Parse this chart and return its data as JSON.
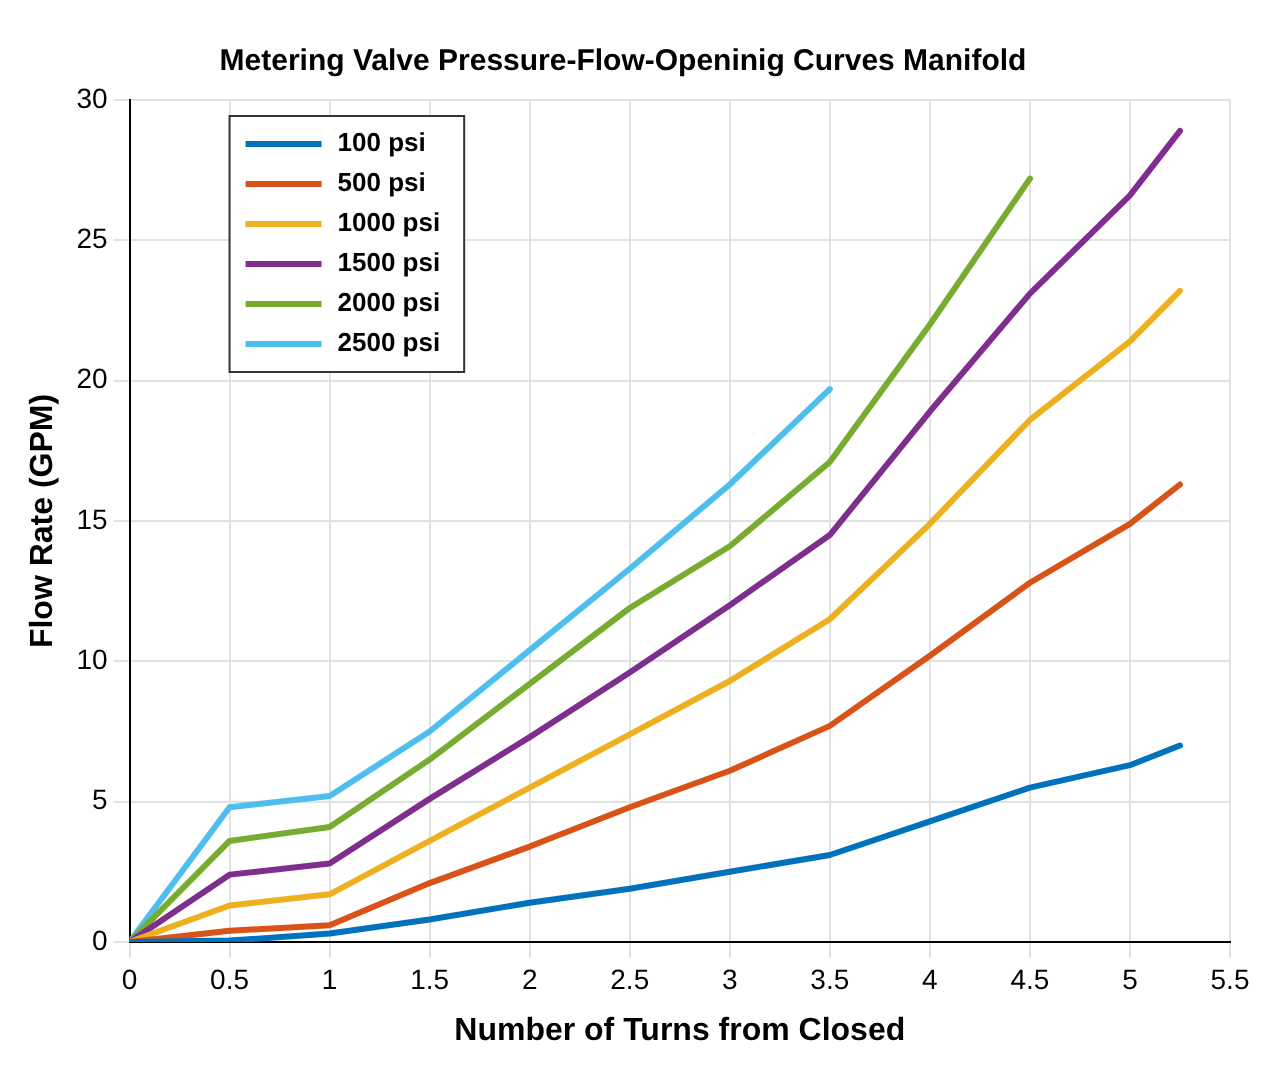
{
  "chart_data": {
    "type": "line",
    "title": "Metering Valve Pressure-Flow-Openinig Curves Manifold",
    "xlabel": "Number of Turns from Closed",
    "ylabel": "Flow Rate (GPM)",
    "x": [
      0,
      0.5,
      1,
      1.5,
      2,
      2.5,
      3,
      3.5,
      4,
      4.5,
      5,
      5.25
    ],
    "series": [
      {
        "name": "100 psi",
        "color": "#0072bd",
        "values": [
          0,
          0.05,
          0.3,
          0.8,
          1.4,
          1.9,
          2.5,
          3.1,
          4.3,
          5.5,
          6.3,
          7.0
        ]
      },
      {
        "name": "500 psi",
        "color": "#d95319",
        "values": [
          0,
          0.4,
          0.6,
          2.1,
          3.4,
          4.8,
          6.1,
          7.7,
          10.2,
          12.8,
          14.9,
          16.3
        ]
      },
      {
        "name": "1000 psi",
        "color": "#edb120",
        "values": [
          0,
          1.3,
          1.7,
          3.6,
          5.5,
          7.4,
          9.3,
          11.5,
          14.9,
          18.6,
          21.4,
          23.2
        ]
      },
      {
        "name": "1500 psi",
        "color": "#7e2f8e",
        "values": [
          0,
          2.4,
          2.8,
          5.1,
          7.3,
          9.6,
          12.0,
          14.5,
          18.9,
          23.1,
          26.6,
          28.9
        ]
      },
      {
        "name": "2000 psi",
        "color": "#77ac30",
        "values": [
          0,
          3.6,
          4.1,
          6.5,
          9.2,
          11.9,
          14.1,
          17.1,
          22.0,
          27.2,
          null,
          null
        ]
      },
      {
        "name": "2500 psi",
        "color": "#4dbeee",
        "values": [
          0,
          4.8,
          5.2,
          7.5,
          10.4,
          13.3,
          16.3,
          19.7,
          null,
          null,
          null,
          null
        ]
      }
    ],
    "xlim": [
      0,
      5.5
    ],
    "xticks": [
      0,
      0.5,
      1,
      1.5,
      2,
      2.5,
      3,
      3.5,
      4,
      4.5,
      5,
      5.5
    ],
    "ylim": [
      0,
      30
    ],
    "yticks": [
      0,
      5,
      10,
      15,
      20,
      25,
      30
    ],
    "grid": true,
    "legend": "top left",
    "marker": "none",
    "line_style": "solid"
  }
}
